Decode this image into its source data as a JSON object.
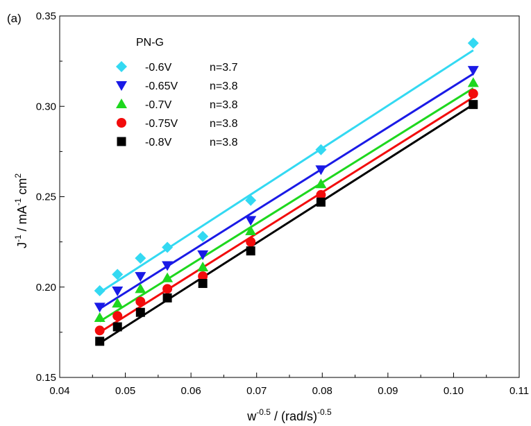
{
  "chart_data": {
    "type": "scatter",
    "panel_label": "(a)",
    "legend_title": "PN-G",
    "xlim": [
      0.04,
      0.11
    ],
    "ylim": [
      0.15,
      0.35
    ],
    "x_ticks": [
      0.04,
      0.05,
      0.06,
      0.07,
      0.08,
      0.09,
      0.1,
      0.11
    ],
    "x_tick_labels": [
      "0.04",
      "0.05",
      "0.06",
      "0.07",
      "0.08",
      "0.09",
      "0.10",
      "0.11"
    ],
    "y_ticks": [
      0.15,
      0.2,
      0.25,
      0.3,
      0.35
    ],
    "y_tick_labels": [
      "0.15",
      "0.20",
      "0.25",
      "0.30",
      "0.35"
    ],
    "xlabel": {
      "base": "w",
      "sup": "-0.5",
      "mid": " / (rad/s)",
      "sup2": "-0.5"
    },
    "ylabel": {
      "p1": "J",
      "s1": "-1",
      "p2": " / mA",
      "s2": "-1",
      "p3": " cm",
      "s3": "2"
    },
    "x": [
      0.0461,
      0.0488,
      0.0523,
      0.0564,
      0.0618,
      0.0691,
      0.0798,
      0.103
    ],
    "series": [
      {
        "name": "-0.6V",
        "n_label": "n=3.7",
        "marker": "diamond",
        "color": "#33d9f2",
        "values": [
          0.198,
          0.207,
          0.216,
          0.222,
          0.228,
          0.248,
          0.276,
          0.335
        ],
        "fit": [
          0.197,
          0.331
        ]
      },
      {
        "name": "-0.65V",
        "n_label": "n=3.8",
        "marker": "triangle-down",
        "color": "#1a1ae6",
        "values": [
          0.189,
          0.198,
          0.206,
          0.212,
          0.218,
          0.237,
          0.265,
          0.32
        ],
        "fit": [
          0.188,
          0.318
        ]
      },
      {
        "name": "-0.7V",
        "n_label": "n=3.8",
        "marker": "triangle-up",
        "color": "#1ed71e",
        "values": [
          0.183,
          0.191,
          0.199,
          0.205,
          0.211,
          0.231,
          0.257,
          0.313
        ],
        "fit": [
          0.181,
          0.31
        ]
      },
      {
        "name": "-0.75V",
        "n_label": "n=3.8",
        "marker": "circle",
        "color": "#f20c0c",
        "values": [
          0.176,
          0.184,
          0.192,
          0.199,
          0.206,
          0.225,
          0.251,
          0.307
        ],
        "fit": [
          0.175,
          0.305
        ]
      },
      {
        "name": "-0.8V",
        "n_label": "n=3.8",
        "marker": "square",
        "color": "#000000",
        "values": [
          0.17,
          0.178,
          0.186,
          0.194,
          0.202,
          0.22,
          0.247,
          0.301
        ],
        "fit": [
          0.169,
          0.301
        ]
      }
    ]
  }
}
